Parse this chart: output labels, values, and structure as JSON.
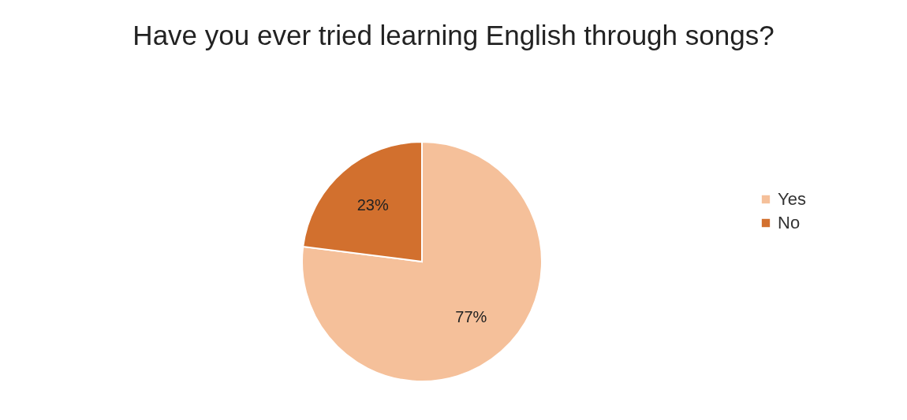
{
  "chart_data": {
    "type": "pie",
    "title": "Have you ever tried learning English through songs?",
    "categories": [
      "Yes",
      "No"
    ],
    "values": [
      77,
      23
    ],
    "colors": [
      "#f5c09a",
      "#d2702e"
    ],
    "value_labels": [
      "77%",
      "23%"
    ],
    "legend": "right"
  }
}
